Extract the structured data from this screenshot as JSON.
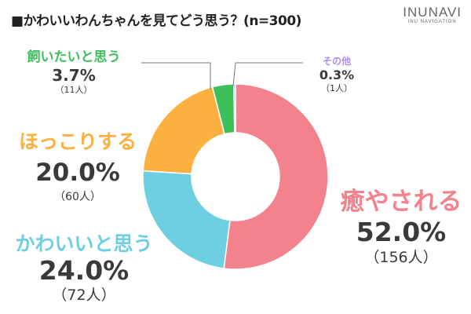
{
  "header": {
    "title": "■かわいいわんちゃんを見てどう思う？(n=300)",
    "brand_name": "INUNAVI",
    "brand_sub": "INU NAVIGATION"
  },
  "colors": {
    "healed": "#f4828c",
    "cute": "#6ecfe3",
    "relieved": "#fbb040",
    "want_keep": "#3dbf5a",
    "other": "#b08cf0"
  },
  "chart_data": {
    "type": "pie",
    "donut": true,
    "title": "■かわいいわんちゃんを見てどう思う？(n=300)",
    "slices": [
      {
        "label": "癒やされる",
        "value": 52.0,
        "pct_text": "52.0%",
        "count_text": "（156人）",
        "color": "#f4828c"
      },
      {
        "label": "かわいいと思う",
        "value": 24.0,
        "pct_text": "24.0%",
        "count_text": "（72人）",
        "color": "#6ecfe3"
      },
      {
        "label": "ほっこりする",
        "value": 20.0,
        "pct_text": "20.0%",
        "count_text": "（60人）",
        "color": "#fbb040"
      },
      {
        "label": "飼いたいと思う",
        "value": 3.7,
        "pct_text": "3.7%",
        "count_text": "（11人）",
        "color": "#3dbf5a"
      },
      {
        "label": "その他",
        "value": 0.3,
        "pct_text": "0.3%",
        "count_text": "（1人）",
        "color": "#b08cf0"
      }
    ]
  }
}
